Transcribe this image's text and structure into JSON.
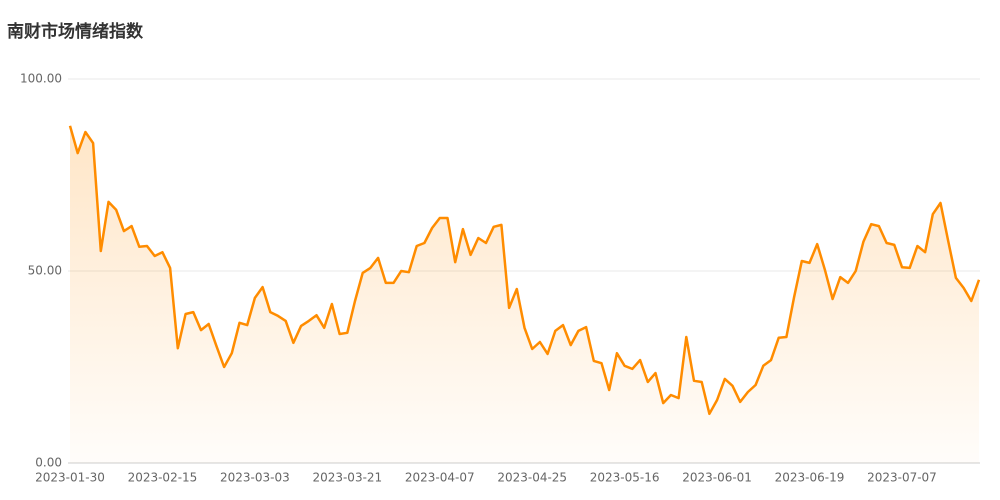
{
  "chart_data": {
    "type": "line",
    "title": "南财市场情绪指数",
    "categories": [
      "2023-01-30",
      null,
      null,
      null,
      null,
      null,
      null,
      null,
      null,
      null,
      null,
      null,
      "2023-02-15",
      null,
      null,
      null,
      null,
      null,
      null,
      null,
      null,
      null,
      null,
      null,
      "2023-03-03",
      null,
      null,
      null,
      null,
      null,
      null,
      null,
      null,
      null,
      null,
      null,
      "2023-03-21",
      null,
      null,
      null,
      null,
      null,
      null,
      null,
      null,
      null,
      null,
      null,
      "2023-04-07",
      null,
      null,
      null,
      null,
      null,
      null,
      null,
      null,
      null,
      null,
      null,
      "2023-04-25",
      null,
      null,
      null,
      null,
      null,
      null,
      null,
      null,
      null,
      null,
      null,
      "2023-05-16",
      null,
      null,
      null,
      null,
      null,
      null,
      null,
      null,
      null,
      null,
      null,
      "2023-06-01",
      null,
      null,
      null,
      null,
      null,
      null,
      null,
      null,
      null,
      null,
      null,
      "2023-06-19",
      null,
      null,
      null,
      null,
      null,
      null,
      null,
      null,
      null,
      null,
      null,
      "2023-07-07",
      null,
      null,
      null,
      null,
      null,
      null,
      null,
      null,
      null,
      null
    ],
    "values": [
      87.8,
      80.7,
      86.2,
      83.3,
      55.2,
      68.0,
      65.9,
      60.4,
      61.7,
      56.3,
      56.5,
      53.9,
      54.9,
      50.8,
      29.9,
      38.8,
      39.3,
      34.6,
      36.2,
      30.5,
      25.0,
      28.6,
      36.5,
      35.9,
      43.0,
      45.8,
      39.3,
      38.3,
      37.0,
      31.3,
      35.7,
      37.0,
      38.5,
      35.2,
      41.4,
      33.6,
      33.9,
      42.2,
      49.5,
      50.8,
      53.4,
      46.9,
      46.9,
      50.0,
      49.7,
      56.5,
      57.3,
      61.2,
      63.8,
      63.8,
      52.3,
      60.9,
      54.2,
      58.6,
      57.3,
      61.5,
      62.0,
      40.4,
      45.3,
      35.2,
      29.7,
      31.5,
      28.4,
      34.4,
      35.9,
      30.7,
      34.4,
      35.4,
      26.6,
      26.0,
      19.0,
      28.6,
      25.3,
      24.5,
      26.8,
      21.1,
      23.4,
      15.6,
      17.7,
      16.9,
      32.8,
      21.4,
      21.1,
      12.8,
      16.4,
      21.9,
      20.1,
      15.9,
      18.5,
      20.3,
      25.3,
      26.8,
      32.6,
      32.8,
      43.2,
      52.6,
      52.1,
      57.0,
      50.3,
      42.7,
      48.4,
      46.9,
      50.0,
      57.6,
      62.2,
      61.7,
      57.3,
      56.8,
      51.0,
      50.8,
      56.5,
      54.9,
      64.8,
      67.7,
      57.8,
      48.2,
      45.6,
      42.2,
      47.7
    ],
    "color": "#ff8c00",
    "ylim": [
      0,
      100
    ],
    "yticks": [
      {
        "value": 0,
        "label": "0.00"
      },
      {
        "value": 50,
        "label": "50.00"
      },
      {
        "value": 100,
        "label": "100.00"
      }
    ],
    "grid": true
  }
}
